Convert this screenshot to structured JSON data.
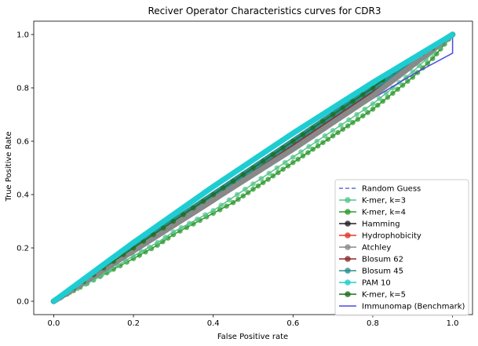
{
  "chart_data": {
    "type": "line",
    "title": "Reciver Operator Characteristics curves for CDR3",
    "xlabel": "False Positive rate",
    "ylabel": "True Positive Rate",
    "xlim": [
      -0.05,
      1.05
    ],
    "ylim": [
      -0.05,
      1.05
    ],
    "xticks": [
      "0.0",
      "0.2",
      "0.4",
      "0.6",
      "0.8",
      "1.0"
    ],
    "yticks": [
      "0.0",
      "0.2",
      "0.4",
      "0.6",
      "0.8",
      "1.0"
    ],
    "grid": false,
    "legend_position": "lower right",
    "series": [
      {
        "name": "Random Guess",
        "color": "#5b6fd6",
        "style": "dashed",
        "marker": false,
        "x": [
          0,
          1
        ],
        "y": [
          0,
          1
        ]
      },
      {
        "name": "K-mer, k=3",
        "color": "#56c48c",
        "marker": true,
        "x": [
          0,
          0.1,
          0.2,
          0.26,
          0.3,
          0.4,
          0.5,
          0.6,
          0.7,
          0.8,
          0.9,
          0.95,
          1.0
        ],
        "y": [
          0,
          0.08,
          0.17,
          0.22,
          0.26,
          0.34,
          0.44,
          0.54,
          0.64,
          0.74,
          0.86,
          0.93,
          1.0
        ]
      },
      {
        "name": "K-mer, k=4",
        "color": "#2e9a2e",
        "marker": true,
        "x": [
          0,
          0.1,
          0.2,
          0.26,
          0.3,
          0.4,
          0.45,
          0.5,
          0.55,
          0.6,
          0.65,
          0.7,
          0.75,
          0.8,
          0.85,
          0.9,
          0.95,
          1.0
        ],
        "y": [
          0,
          0.08,
          0.16,
          0.21,
          0.25,
          0.33,
          0.37,
          0.42,
          0.47,
          0.52,
          0.57,
          0.62,
          0.67,
          0.72,
          0.78,
          0.84,
          0.91,
          1.0
        ]
      },
      {
        "name": "Hamming",
        "color": "#222222",
        "marker": true,
        "x": [
          0,
          0.2,
          0.4,
          0.6,
          0.8,
          1.0
        ],
        "y": [
          0,
          0.2,
          0.4,
          0.6,
          0.8,
          1.0
        ]
      },
      {
        "name": "Hydrophobicity",
        "color": "#e03a2a",
        "marker": true,
        "x": [
          0,
          0.2,
          0.4,
          0.6,
          0.8,
          1.0
        ],
        "y": [
          0,
          0.19,
          0.39,
          0.59,
          0.79,
          1.0
        ]
      },
      {
        "name": "Atchley",
        "color": "#8a8a8a",
        "marker": true,
        "x": [
          0,
          0.2,
          0.4,
          0.6,
          0.8,
          1.0
        ],
        "y": [
          0,
          0.19,
          0.38,
          0.57,
          0.77,
          1.0
        ]
      },
      {
        "name": "Blosum 62",
        "color": "#8b2a2a",
        "marker": true,
        "x": [
          0,
          0.2,
          0.4,
          0.6,
          0.8,
          1.0
        ],
        "y": [
          0,
          0.19,
          0.38,
          0.58,
          0.78,
          1.0
        ]
      },
      {
        "name": "Blosum 45",
        "color": "#2a8f8f",
        "marker": true,
        "x": [
          0,
          0.2,
          0.4,
          0.6,
          0.8,
          1.0
        ],
        "y": [
          0,
          0.2,
          0.4,
          0.6,
          0.8,
          1.0
        ]
      },
      {
        "name": "PAM 10",
        "color": "#1ecdd1",
        "marker": true,
        "x": [
          0,
          0.2,
          0.4,
          0.6,
          0.8,
          1.0
        ],
        "y": [
          0,
          0.22,
          0.43,
          0.63,
          0.82,
          1.0
        ]
      },
      {
        "name": "K-mer, k=5",
        "color": "#1f6e1f",
        "marker": true,
        "x": [
          0,
          0.2,
          0.4,
          0.6,
          0.8,
          0.85,
          0.9,
          0.95,
          1.0
        ],
        "y": [
          0,
          0.2,
          0.4,
          0.6,
          0.8,
          0.86,
          0.91,
          0.95,
          1.0
        ]
      },
      {
        "name": "Immunomap (Benchmark)",
        "color": "#4a4ae0",
        "marker": false,
        "x": [
          0,
          0.2,
          0.4,
          0.6,
          0.8,
          0.9,
          1.0,
          1.0
        ],
        "y": [
          0,
          0.18,
          0.37,
          0.57,
          0.76,
          0.85,
          0.93,
          1.0
        ]
      }
    ]
  }
}
